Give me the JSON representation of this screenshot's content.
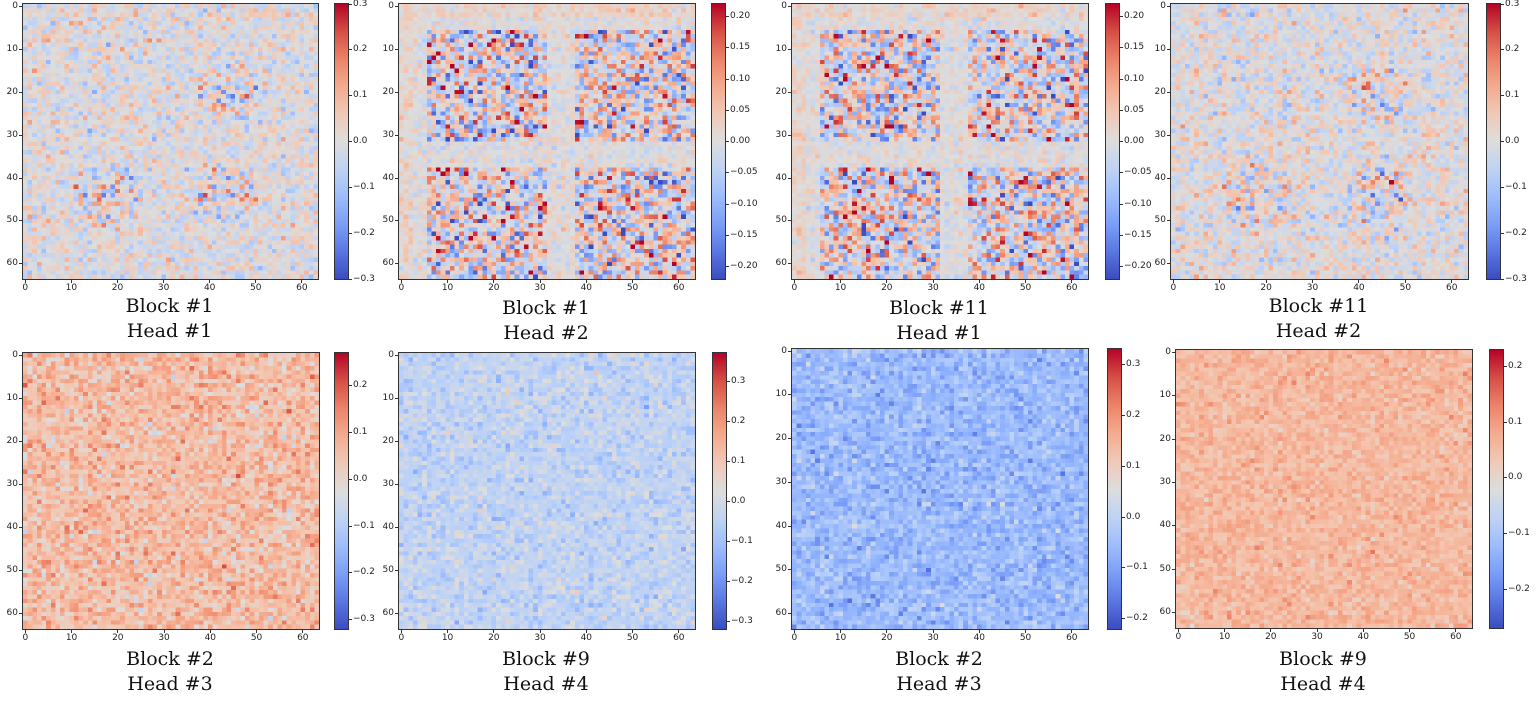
{
  "chart_data": [
    {
      "type": "heatmap",
      "title": "",
      "caption": [
        "Block #1",
        "Head #1"
      ],
      "xticks": [
        0,
        10,
        20,
        30,
        40,
        50,
        60
      ],
      "yticks": [
        0,
        10,
        20,
        30,
        40,
        50,
        60
      ],
      "colormap": "coolwarm",
      "clim": [
        -0.3,
        0.3
      ],
      "cbar_ticks": [
        "-0.3",
        "-0.2",
        "-0.1",
        "0.0",
        "0.1",
        "0.2",
        "0.3"
      ],
      "pattern": "block1_head1",
      "seed": 11,
      "bias": 0.0,
      "spread": 0.09
    },
    {
      "type": "heatmap",
      "title": "",
      "caption": [
        "Block #1",
        "Head #2"
      ],
      "xticks": [
        0,
        10,
        20,
        30,
        40,
        50,
        60
      ],
      "yticks": [
        0,
        10,
        20,
        30,
        40,
        50,
        60
      ],
      "colormap": "coolwarm",
      "clim": [
        -0.22,
        0.22
      ],
      "cbar_ticks": [
        "-0.20",
        "-0.15",
        "-0.10",
        "-0.05",
        "0.00",
        "0.05",
        "0.10",
        "0.15",
        "0.20"
      ],
      "pattern": "quadrants",
      "seed": 23,
      "bias": 0.0,
      "spread": 0.08
    },
    {
      "type": "heatmap",
      "title": "",
      "caption": [
        "Block #11",
        "Head #1"
      ],
      "xticks": [
        0,
        10,
        20,
        30,
        40,
        50,
        60
      ],
      "yticks": [
        0,
        10,
        20,
        30,
        40,
        50,
        60
      ],
      "colormap": "coolwarm",
      "clim": [
        -0.22,
        0.22
      ],
      "cbar_ticks": [
        "-0.20",
        "-0.15",
        "-0.10",
        "-0.05",
        "0.00",
        "0.05",
        "0.10",
        "0.15",
        "0.20"
      ],
      "pattern": "quadrants",
      "seed": 37,
      "bias": 0.0,
      "spread": 0.08
    },
    {
      "type": "heatmap",
      "title": "",
      "caption": [
        "Block #11",
        "Head #2"
      ],
      "xticks": [
        0,
        10,
        20,
        30,
        40,
        50,
        60
      ],
      "yticks": [
        0,
        10,
        20,
        30,
        40,
        50,
        60
      ],
      "colormap": "coolwarm",
      "clim": [
        -0.3,
        0.3
      ],
      "cbar_ticks": [
        "-0.3",
        "-0.2",
        "-0.1",
        "0.0",
        "0.1",
        "0.2",
        "0.3"
      ],
      "pattern": "block1_head1",
      "seed": 41,
      "bias": 0.0,
      "spread": 0.09
    },
    {
      "type": "heatmap",
      "title": "",
      "caption": [
        "Block #2",
        "Head #3"
      ],
      "xticks": [
        0,
        10,
        20,
        30,
        40,
        50,
        60
      ],
      "yticks": [
        0,
        10,
        20,
        30,
        40,
        50,
        60
      ],
      "colormap": "coolwarm",
      "clim": [
        -0.32,
        0.27
      ],
      "cbar_ticks": [
        "-0.3",
        "-0.2",
        "-0.1",
        "0.0",
        "0.1",
        "0.2"
      ],
      "pattern": "noise",
      "seed": 53,
      "bias": 0.06,
      "spread": 0.08
    },
    {
      "type": "heatmap",
      "title": "",
      "caption": [
        "Block #9",
        "Head #4"
      ],
      "xticks": [
        0,
        10,
        20,
        30,
        40,
        50,
        60
      ],
      "yticks": [
        0,
        10,
        20,
        30,
        40,
        50,
        60
      ],
      "colormap": "coolwarm",
      "clim": [
        -0.32,
        0.37
      ],
      "cbar_ticks": [
        "-0.3",
        "-0.2",
        "-0.1",
        "0.0",
        "0.1",
        "0.2",
        "0.3"
      ],
      "pattern": "noise",
      "seed": 67,
      "bias": -0.04,
      "spread": 0.07
    },
    {
      "type": "heatmap",
      "title": "",
      "caption": [
        "Block #2",
        "Head #3"
      ],
      "xticks": [
        0,
        10,
        20,
        30,
        40,
        50,
        60
      ],
      "yticks": [
        0,
        10,
        20,
        30,
        40,
        50,
        60
      ],
      "colormap": "coolwarm",
      "clim": [
        -0.22,
        0.33
      ],
      "cbar_ticks": [
        "-0.2",
        "-0.1",
        "0.0",
        "0.1",
        "0.2",
        "0.3"
      ],
      "pattern": "noise",
      "seed": 79,
      "bias": -0.06,
      "spread": 0.06
    },
    {
      "type": "heatmap",
      "title": "",
      "caption": [
        "Block #9",
        "Head #4"
      ],
      "xticks": [
        0,
        10,
        20,
        30,
        40,
        50,
        60
      ],
      "yticks": [
        0,
        10,
        20,
        30,
        40,
        50,
        60
      ],
      "colormap": "coolwarm",
      "clim": [
        -0.27,
        0.23
      ],
      "cbar_ticks": [
        "-0.2",
        "-0.1",
        "0.0",
        "0.1",
        "0.2"
      ],
      "pattern": "noise",
      "seed": 97,
      "bias": 0.06,
      "spread": 0.04
    }
  ]
}
